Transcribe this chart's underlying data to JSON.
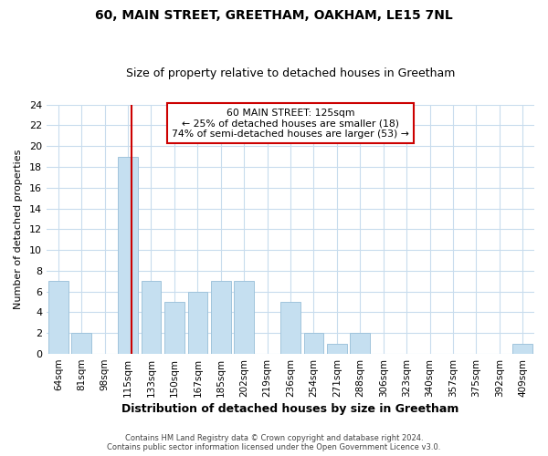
{
  "title": "60, MAIN STREET, GREETHAM, OAKHAM, LE15 7NL",
  "subtitle": "Size of property relative to detached houses in Greetham",
  "xlabel": "Distribution of detached houses by size in Greetham",
  "ylabel": "Number of detached properties",
  "bar_labels": [
    "64sqm",
    "81sqm",
    "98sqm",
    "115sqm",
    "133sqm",
    "150sqm",
    "167sqm",
    "185sqm",
    "202sqm",
    "219sqm",
    "236sqm",
    "254sqm",
    "271sqm",
    "288sqm",
    "306sqm",
    "323sqm",
    "340sqm",
    "357sqm",
    "375sqm",
    "392sqm",
    "409sqm"
  ],
  "bar_values": [
    7,
    2,
    0,
    19,
    7,
    5,
    6,
    7,
    7,
    0,
    5,
    2,
    1,
    2,
    0,
    0,
    0,
    0,
    0,
    0,
    1
  ],
  "bar_color": "#c5dff0",
  "bar_edge_color": "#a0c4dc",
  "ylim": [
    0,
    24
  ],
  "yticks": [
    0,
    2,
    4,
    6,
    8,
    10,
    12,
    14,
    16,
    18,
    20,
    22,
    24
  ],
  "vline_color": "#cc0000",
  "vline_x": 3.15,
  "annotation_title": "60 MAIN STREET: 125sqm",
  "annotation_line1": "← 25% of detached houses are smaller (18)",
  "annotation_line2": "74% of semi-detached houses are larger (53) →",
  "annotation_box_color": "#ffffff",
  "annotation_box_edge": "#cc0000",
  "footer1": "Contains HM Land Registry data © Crown copyright and database right 2024.",
  "footer2": "Contains public sector information licensed under the Open Government Licence v3.0.",
  "background_color": "#ffffff",
  "grid_color": "#c8dced"
}
